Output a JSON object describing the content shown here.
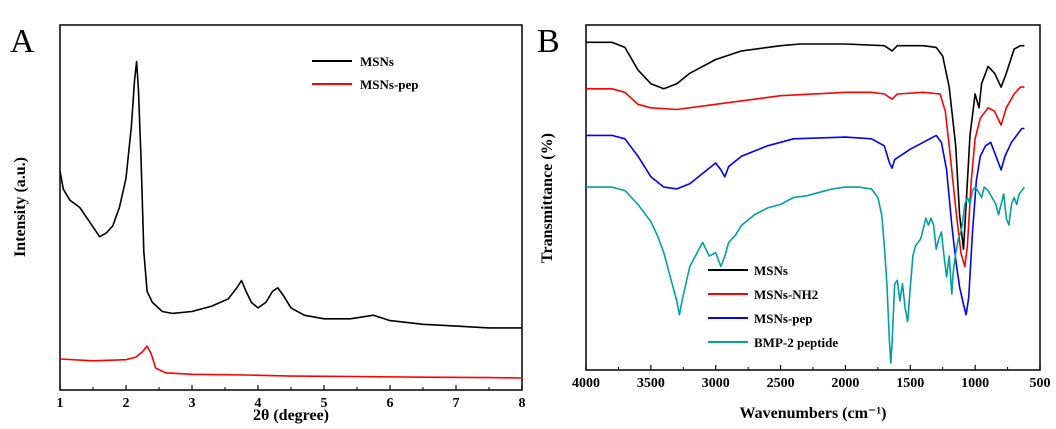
{
  "chart_data": [
    {
      "panel_label": "A",
      "type": "line",
      "xlabel": "2θ (degree)",
      "ylabel": "Intensity (a.u.)",
      "xlim": [
        1,
        8
      ],
      "ylim": [
        0,
        100
      ],
      "x_ticks": [
        "1",
        "2",
        "3",
        "4",
        "5",
        "6",
        "7",
        "8"
      ],
      "y_ticks_shown": false,
      "grid": false,
      "legend_position": "top-right",
      "series": [
        {
          "name": "MSNs",
          "color": "#000000",
          "points": [
            [
              1.0,
              60
            ],
            [
              1.05,
              55
            ],
            [
              1.15,
              52
            ],
            [
              1.3,
              50
            ],
            [
              1.45,
              46
            ],
            [
              1.6,
              42
            ],
            [
              1.7,
              43
            ],
            [
              1.8,
              45
            ],
            [
              1.9,
              50
            ],
            [
              2.0,
              58
            ],
            [
              2.08,
              72
            ],
            [
              2.13,
              85
            ],
            [
              2.16,
              90
            ],
            [
              2.19,
              82
            ],
            [
              2.23,
              62
            ],
            [
              2.27,
              38
            ],
            [
              2.32,
              27
            ],
            [
              2.4,
              24
            ],
            [
              2.55,
              21.5
            ],
            [
              2.7,
              21
            ],
            [
              3.0,
              21.5
            ],
            [
              3.3,
              23
            ],
            [
              3.55,
              25
            ],
            [
              3.68,
              28
            ],
            [
              3.75,
              30
            ],
            [
              3.82,
              27
            ],
            [
              3.9,
              24
            ],
            [
              4.0,
              22.5
            ],
            [
              4.12,
              24
            ],
            [
              4.22,
              27
            ],
            [
              4.3,
              28
            ],
            [
              4.38,
              26
            ],
            [
              4.5,
              22.5
            ],
            [
              4.7,
              20.5
            ],
            [
              5.0,
              19.5
            ],
            [
              5.4,
              19.5
            ],
            [
              5.75,
              20.5
            ],
            [
              6.0,
              19
            ],
            [
              6.5,
              18
            ],
            [
              7.0,
              17.5
            ],
            [
              7.5,
              17
            ],
            [
              8.0,
              17
            ]
          ]
        },
        {
          "name": "MSNs-pep",
          "color": "#ff0000",
          "points": [
            [
              1.0,
              8.5
            ],
            [
              1.5,
              8
            ],
            [
              2.0,
              8.3
            ],
            [
              2.15,
              9
            ],
            [
              2.25,
              10.5
            ],
            [
              2.32,
              12
            ],
            [
              2.38,
              10
            ],
            [
              2.45,
              6
            ],
            [
              2.6,
              4.7
            ],
            [
              3.0,
              4.3
            ],
            [
              3.8,
              4.1
            ],
            [
              4.5,
              3.8
            ],
            [
              5.5,
              3.7
            ],
            [
              6.5,
              3.5
            ],
            [
              7.5,
              3.4
            ],
            [
              8.0,
              3.3
            ]
          ]
        }
      ]
    },
    {
      "panel_label": "B",
      "type": "line",
      "xlabel": "Wavenumbers (cm⁻¹)",
      "ylabel": "Transmittance (%)",
      "xlim": [
        4000,
        500
      ],
      "ylim": [
        0,
        100
      ],
      "x_ticks": [
        "4000",
        "3500",
        "3000",
        "2500",
        "2000",
        "1500",
        "1000",
        "500"
      ],
      "y_ticks_shown": false,
      "grid": false,
      "legend_position": "bottom-left",
      "series": [
        {
          "name": "MSNs",
          "color": "#000000",
          "points": [
            [
              4000,
              95
            ],
            [
              3800,
              95
            ],
            [
              3700,
              93.5
            ],
            [
              3600,
              87
            ],
            [
              3500,
              83
            ],
            [
              3400,
              81.5
            ],
            [
              3300,
              83
            ],
            [
              3200,
              86
            ],
            [
              3000,
              90
            ],
            [
              2800,
              92.5
            ],
            [
              2500,
              94
            ],
            [
              2350,
              94.5
            ],
            [
              2000,
              94.5
            ],
            [
              1700,
              94
            ],
            [
              1640,
              92.5
            ],
            [
              1600,
              94
            ],
            [
              1400,
              94
            ],
            [
              1300,
              93.5
            ],
            [
              1250,
              91
            ],
            [
              1200,
              82
            ],
            [
              1150,
              65
            ],
            [
              1120,
              45
            ],
            [
              1090,
              35
            ],
            [
              1070,
              48
            ],
            [
              1040,
              68
            ],
            [
              1000,
              80
            ],
            [
              970,
              76
            ],
            [
              950,
              83
            ],
            [
              900,
              88
            ],
            [
              850,
              86
            ],
            [
              800,
              82
            ],
            [
              760,
              86
            ],
            [
              700,
              93
            ],
            [
              650,
              94
            ],
            [
              620,
              94
            ]
          ]
        },
        {
          "name": "MSNs-NH2",
          "color": "#ff0000",
          "points": [
            [
              4000,
              81.5
            ],
            [
              3800,
              81.5
            ],
            [
              3700,
              80.5
            ],
            [
              3600,
              77
            ],
            [
              3500,
              76
            ],
            [
              3300,
              75.5
            ],
            [
              3000,
              77
            ],
            [
              2500,
              79.5
            ],
            [
              2000,
              80.5
            ],
            [
              1800,
              80.5
            ],
            [
              1700,
              80
            ],
            [
              1640,
              78.5
            ],
            [
              1600,
              80
            ],
            [
              1400,
              80.5
            ],
            [
              1270,
              80
            ],
            [
              1230,
              75
            ],
            [
              1200,
              65
            ],
            [
              1150,
              47
            ],
            [
              1110,
              34
            ],
            [
              1080,
              30
            ],
            [
              1060,
              36
            ],
            [
              1030,
              55
            ],
            [
              1000,
              67
            ],
            [
              960,
              73
            ],
            [
              900,
              76
            ],
            [
              850,
              75
            ],
            [
              800,
              71
            ],
            [
              760,
              76
            ],
            [
              700,
              80
            ],
            [
              650,
              82
            ],
            [
              620,
              82
            ]
          ]
        },
        {
          "name": "MSNs-pep",
          "color": "#0000ff",
          "points": [
            [
              4000,
              68
            ],
            [
              3800,
              68
            ],
            [
              3700,
              67
            ],
            [
              3600,
              62
            ],
            [
              3500,
              56
            ],
            [
              3400,
              53
            ],
            [
              3300,
              52.5
            ],
            [
              3200,
              54
            ],
            [
              3100,
              57
            ],
            [
              3000,
              60
            ],
            [
              2960,
              58
            ],
            [
              2930,
              56
            ],
            [
              2900,
              59
            ],
            [
              2800,
              62
            ],
            [
              2600,
              65
            ],
            [
              2400,
              67
            ],
            [
              2000,
              67.5
            ],
            [
              1800,
              67
            ],
            [
              1700,
              65
            ],
            [
              1660,
              60
            ],
            [
              1640,
              58.5
            ],
            [
              1620,
              61
            ],
            [
              1580,
              62
            ],
            [
              1540,
              63
            ],
            [
              1500,
              64
            ],
            [
              1400,
              66
            ],
            [
              1300,
              68
            ],
            [
              1260,
              66
            ],
            [
              1220,
              58
            ],
            [
              1180,
              42
            ],
            [
              1150,
              32
            ],
            [
              1120,
              24
            ],
            [
              1090,
              19
            ],
            [
              1070,
              16
            ],
            [
              1050,
              21
            ],
            [
              1020,
              40
            ],
            [
              990,
              55
            ],
            [
              960,
              62
            ],
            [
              920,
              65
            ],
            [
              880,
              66
            ],
            [
              850,
              63
            ],
            [
              800,
              58
            ],
            [
              770,
              62
            ],
            [
              720,
              66
            ],
            [
              680,
              68
            ],
            [
              640,
              70
            ],
            [
              620,
              70
            ]
          ]
        },
        {
          "name": "BMP-2 peptide",
          "color": "#00a0a0",
          "points": [
            [
              4000,
              53
            ],
            [
              3800,
              53
            ],
            [
              3700,
              52
            ],
            [
              3600,
              48
            ],
            [
              3500,
              43
            ],
            [
              3450,
              39
            ],
            [
              3400,
              34
            ],
            [
              3350,
              27
            ],
            [
              3300,
              20
            ],
            [
              3280,
              16
            ],
            [
              3260,
              20
            ],
            [
              3200,
              30
            ],
            [
              3100,
              37
            ],
            [
              3050,
              33
            ],
            [
              3000,
              34
            ],
            [
              2960,
              30
            ],
            [
              2930,
              33
            ],
            [
              2900,
              37
            ],
            [
              2850,
              39
            ],
            [
              2800,
              42
            ],
            [
              2700,
              45
            ],
            [
              2600,
              47
            ],
            [
              2500,
              48
            ],
            [
              2400,
              50
            ],
            [
              2300,
              50.5
            ],
            [
              2200,
              51.5
            ],
            [
              2100,
              52.5
            ],
            [
              2000,
              53
            ],
            [
              1900,
              53
            ],
            [
              1800,
              52.5
            ],
            [
              1750,
              50
            ],
            [
              1720,
              45
            ],
            [
              1700,
              36
            ],
            [
              1680,
              25
            ],
            [
              1660,
              8
            ],
            [
              1650,
              2
            ],
            [
              1640,
              8
            ],
            [
              1620,
              25
            ],
            [
              1600,
              26
            ],
            [
              1580,
              20
            ],
            [
              1560,
              25
            ],
            [
              1540,
              18
            ],
            [
              1520,
              14
            ],
            [
              1500,
              24
            ],
            [
              1480,
              33
            ],
            [
              1460,
              36
            ],
            [
              1420,
              38
            ],
            [
              1400,
              41
            ],
            [
              1380,
              44
            ],
            [
              1360,
              42
            ],
            [
              1340,
              44
            ],
            [
              1320,
              42
            ],
            [
              1300,
              35
            ],
            [
              1280,
              38
            ],
            [
              1260,
              40
            ],
            [
              1240,
              33
            ],
            [
              1220,
              27
            ],
            [
              1200,
              33
            ],
            [
              1180,
              22
            ],
            [
              1170,
              28
            ],
            [
              1150,
              34
            ],
            [
              1130,
              38
            ],
            [
              1110,
              40
            ],
            [
              1100,
              42
            ],
            [
              1080,
              48
            ],
            [
              1060,
              50
            ],
            [
              1040,
              48
            ],
            [
              1020,
              52
            ],
            [
              1000,
              53
            ],
            [
              980,
              52
            ],
            [
              950,
              50
            ],
            [
              930,
              53
            ],
            [
              900,
              52
            ],
            [
              870,
              50
            ],
            [
              840,
              48
            ],
            [
              820,
              45
            ],
            [
              800,
              48
            ],
            [
              780,
              51
            ],
            [
              760,
              44
            ],
            [
              740,
              42
            ],
            [
              720,
              48
            ],
            [
              700,
              50
            ],
            [
              680,
              48
            ],
            [
              660,
              51
            ],
            [
              640,
              52
            ],
            [
              620,
              53
            ]
          ]
        }
      ]
    }
  ]
}
